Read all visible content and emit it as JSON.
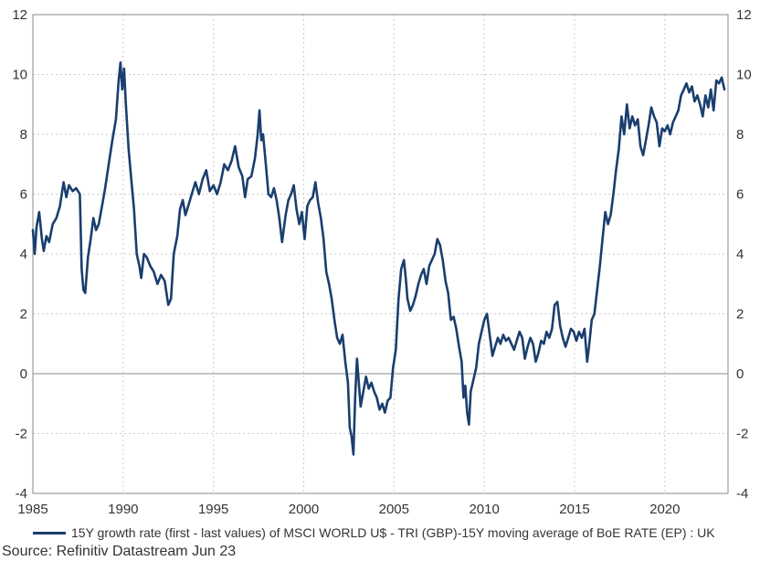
{
  "chart_data": {
    "type": "line",
    "title": "",
    "xlabel": "",
    "ylabel": "",
    "xlim": [
      1985,
      2023.5
    ],
    "ylim": [
      -4,
      12
    ],
    "x_ticks": [
      "1985",
      "1990",
      "1995",
      "2000",
      "2005",
      "2010",
      "2015",
      "2020"
    ],
    "y_ticks": [
      "-4",
      "-2",
      "0",
      "2",
      "4",
      "6",
      "8",
      "10",
      "12"
    ],
    "grid": true,
    "zero_line": true,
    "legend_position": "bottom",
    "series": [
      {
        "name": "15Y growth rate (first - last values) of MSCI WORLD U$ - TRI (GBP)-15Y moving average of BoE RATE (EP) : UK",
        "color": "#1a3e6e",
        "points": [
          [
            1985.0,
            4.8
          ],
          [
            1985.1,
            4.0
          ],
          [
            1985.2,
            4.9
          ],
          [
            1985.35,
            5.4
          ],
          [
            1985.5,
            4.5
          ],
          [
            1985.6,
            4.1
          ],
          [
            1985.75,
            4.6
          ],
          [
            1985.9,
            4.4
          ],
          [
            1986.1,
            5.0
          ],
          [
            1986.3,
            5.2
          ],
          [
            1986.5,
            5.6
          ],
          [
            1986.7,
            6.4
          ],
          [
            1986.85,
            5.9
          ],
          [
            1987.0,
            6.3
          ],
          [
            1987.2,
            6.1
          ],
          [
            1987.4,
            6.2
          ],
          [
            1987.6,
            6.0
          ],
          [
            1987.7,
            3.5
          ],
          [
            1987.8,
            2.8
          ],
          [
            1987.9,
            2.7
          ],
          [
            1988.05,
            3.9
          ],
          [
            1988.2,
            4.5
          ],
          [
            1988.35,
            5.2
          ],
          [
            1988.5,
            4.8
          ],
          [
            1988.65,
            5.0
          ],
          [
            1988.8,
            5.5
          ],
          [
            1989.0,
            6.2
          ],
          [
            1989.2,
            7.0
          ],
          [
            1989.4,
            7.8
          ],
          [
            1989.6,
            8.5
          ],
          [
            1989.75,
            9.8
          ],
          [
            1989.85,
            10.4
          ],
          [
            1989.95,
            9.5
          ],
          [
            1990.05,
            10.2
          ],
          [
            1990.15,
            9.0
          ],
          [
            1990.3,
            7.5
          ],
          [
            1990.45,
            6.5
          ],
          [
            1990.6,
            5.5
          ],
          [
            1990.75,
            4.0
          ],
          [
            1990.9,
            3.6
          ],
          [
            1991.0,
            3.2
          ],
          [
            1991.15,
            4.0
          ],
          [
            1991.3,
            3.9
          ],
          [
            1991.5,
            3.6
          ],
          [
            1991.7,
            3.4
          ],
          [
            1991.9,
            3.0
          ],
          [
            1992.1,
            3.3
          ],
          [
            1992.3,
            3.1
          ],
          [
            1992.5,
            2.3
          ],
          [
            1992.65,
            2.5
          ],
          [
            1992.8,
            4.0
          ],
          [
            1993.0,
            4.6
          ],
          [
            1993.15,
            5.5
          ],
          [
            1993.3,
            5.8
          ],
          [
            1993.45,
            5.3
          ],
          [
            1993.6,
            5.6
          ],
          [
            1993.8,
            6.0
          ],
          [
            1994.0,
            6.4
          ],
          [
            1994.2,
            6.0
          ],
          [
            1994.4,
            6.5
          ],
          [
            1994.6,
            6.8
          ],
          [
            1994.8,
            6.1
          ],
          [
            1995.0,
            6.3
          ],
          [
            1995.2,
            6.0
          ],
          [
            1995.4,
            6.4
          ],
          [
            1995.6,
            7.0
          ],
          [
            1995.8,
            6.8
          ],
          [
            1996.0,
            7.1
          ],
          [
            1996.2,
            7.6
          ],
          [
            1996.4,
            6.9
          ],
          [
            1996.6,
            6.6
          ],
          [
            1996.75,
            5.9
          ],
          [
            1996.9,
            6.5
          ],
          [
            1997.1,
            6.6
          ],
          [
            1997.3,
            7.2
          ],
          [
            1997.45,
            8.0
          ],
          [
            1997.55,
            8.8
          ],
          [
            1997.65,
            7.8
          ],
          [
            1997.75,
            8.0
          ],
          [
            1997.9,
            7.0
          ],
          [
            1998.05,
            6.0
          ],
          [
            1998.2,
            5.9
          ],
          [
            1998.35,
            6.2
          ],
          [
            1998.5,
            5.8
          ],
          [
            1998.65,
            5.2
          ],
          [
            1998.8,
            4.4
          ],
          [
            1999.0,
            5.3
          ],
          [
            1999.15,
            5.8
          ],
          [
            1999.3,
            6.0
          ],
          [
            1999.45,
            6.3
          ],
          [
            1999.6,
            5.5
          ],
          [
            1999.75,
            5.0
          ],
          [
            1999.9,
            5.4
          ],
          [
            2000.05,
            4.5
          ],
          [
            2000.2,
            5.6
          ],
          [
            2000.35,
            5.8
          ],
          [
            2000.5,
            5.9
          ],
          [
            2000.65,
            6.4
          ],
          [
            2000.8,
            5.7
          ],
          [
            2000.95,
            5.2
          ],
          [
            2001.1,
            4.5
          ],
          [
            2001.25,
            3.4
          ],
          [
            2001.4,
            3.0
          ],
          [
            2001.55,
            2.5
          ],
          [
            2001.7,
            1.8
          ],
          [
            2001.85,
            1.2
          ],
          [
            2002.0,
            1.0
          ],
          [
            2002.15,
            1.3
          ],
          [
            2002.3,
            0.4
          ],
          [
            2002.45,
            -0.3
          ],
          [
            2002.55,
            -1.8
          ],
          [
            2002.65,
            -2.1
          ],
          [
            2002.75,
            -2.7
          ],
          [
            2002.85,
            -0.8
          ],
          [
            2002.95,
            0.5
          ],
          [
            2003.05,
            -0.3
          ],
          [
            2003.15,
            -1.1
          ],
          [
            2003.3,
            -0.6
          ],
          [
            2003.45,
            -0.1
          ],
          [
            2003.6,
            -0.5
          ],
          [
            2003.75,
            -0.3
          ],
          [
            2003.9,
            -0.6
          ],
          [
            2004.05,
            -0.8
          ],
          [
            2004.2,
            -1.2
          ],
          [
            2004.35,
            -1.0
          ],
          [
            2004.5,
            -1.3
          ],
          [
            2004.65,
            -0.9
          ],
          [
            2004.8,
            -0.8
          ],
          [
            2004.95,
            0.2
          ],
          [
            2005.1,
            0.8
          ],
          [
            2005.25,
            2.5
          ],
          [
            2005.4,
            3.5
          ],
          [
            2005.55,
            3.8
          ],
          [
            2005.65,
            3.2
          ],
          [
            2005.75,
            2.5
          ],
          [
            2005.9,
            2.1
          ],
          [
            2006.05,
            2.3
          ],
          [
            2006.2,
            2.6
          ],
          [
            2006.35,
            3.0
          ],
          [
            2006.5,
            3.3
          ],
          [
            2006.65,
            3.5
          ],
          [
            2006.8,
            3.0
          ],
          [
            2006.95,
            3.6
          ],
          [
            2007.1,
            3.8
          ],
          [
            2007.25,
            4.0
          ],
          [
            2007.4,
            4.5
          ],
          [
            2007.55,
            4.3
          ],
          [
            2007.7,
            3.8
          ],
          [
            2007.85,
            3.1
          ],
          [
            2008.0,
            2.7
          ],
          [
            2008.15,
            1.8
          ],
          [
            2008.3,
            1.9
          ],
          [
            2008.45,
            1.5
          ],
          [
            2008.6,
            0.9
          ],
          [
            2008.75,
            0.4
          ],
          [
            2008.85,
            -0.8
          ],
          [
            2008.95,
            -0.4
          ],
          [
            2009.05,
            -1.3
          ],
          [
            2009.15,
            -1.7
          ],
          [
            2009.25,
            -0.6
          ],
          [
            2009.4,
            -0.2
          ],
          [
            2009.55,
            0.2
          ],
          [
            2009.7,
            1.0
          ],
          [
            2009.85,
            1.4
          ],
          [
            2010.0,
            1.8
          ],
          [
            2010.15,
            2.0
          ],
          [
            2010.3,
            1.3
          ],
          [
            2010.45,
            0.6
          ],
          [
            2010.6,
            0.9
          ],
          [
            2010.75,
            1.2
          ],
          [
            2010.9,
            1.0
          ],
          [
            2011.05,
            1.3
          ],
          [
            2011.2,
            1.1
          ],
          [
            2011.35,
            1.2
          ],
          [
            2011.5,
            1.0
          ],
          [
            2011.65,
            0.8
          ],
          [
            2011.8,
            1.1
          ],
          [
            2011.95,
            1.4
          ],
          [
            2012.1,
            1.2
          ],
          [
            2012.25,
            0.5
          ],
          [
            2012.4,
            0.9
          ],
          [
            2012.55,
            1.2
          ],
          [
            2012.7,
            1.0
          ],
          [
            2012.85,
            0.4
          ],
          [
            2013.0,
            0.7
          ],
          [
            2013.15,
            1.1
          ],
          [
            2013.3,
            1.0
          ],
          [
            2013.45,
            1.4
          ],
          [
            2013.6,
            1.2
          ],
          [
            2013.75,
            1.5
          ],
          [
            2013.9,
            2.3
          ],
          [
            2014.05,
            2.4
          ],
          [
            2014.2,
            1.6
          ],
          [
            2014.35,
            1.2
          ],
          [
            2014.5,
            0.9
          ],
          [
            2014.65,
            1.2
          ],
          [
            2014.8,
            1.5
          ],
          [
            2014.95,
            1.4
          ],
          [
            2015.1,
            1.1
          ],
          [
            2015.25,
            1.4
          ],
          [
            2015.4,
            1.2
          ],
          [
            2015.55,
            1.5
          ],
          [
            2015.7,
            0.4
          ],
          [
            2015.8,
            0.9
          ],
          [
            2015.95,
            1.8
          ],
          [
            2016.1,
            2.0
          ],
          [
            2016.25,
            2.8
          ],
          [
            2016.4,
            3.6
          ],
          [
            2016.55,
            4.5
          ],
          [
            2016.7,
            5.4
          ],
          [
            2016.85,
            5.0
          ],
          [
            2017.0,
            5.3
          ],
          [
            2017.15,
            6.0
          ],
          [
            2017.3,
            6.8
          ],
          [
            2017.45,
            7.5
          ],
          [
            2017.6,
            8.6
          ],
          [
            2017.75,
            8.0
          ],
          [
            2017.9,
            9.0
          ],
          [
            2018.05,
            8.2
          ],
          [
            2018.2,
            8.6
          ],
          [
            2018.35,
            8.3
          ],
          [
            2018.5,
            8.5
          ],
          [
            2018.65,
            7.6
          ],
          [
            2018.8,
            7.3
          ],
          [
            2018.95,
            7.8
          ],
          [
            2019.1,
            8.3
          ],
          [
            2019.25,
            8.9
          ],
          [
            2019.4,
            8.6
          ],
          [
            2019.55,
            8.4
          ],
          [
            2019.7,
            7.6
          ],
          [
            2019.85,
            8.2
          ],
          [
            2020.0,
            8.1
          ],
          [
            2020.15,
            8.3
          ],
          [
            2020.3,
            8.0
          ],
          [
            2020.45,
            8.4
          ],
          [
            2020.6,
            8.6
          ],
          [
            2020.75,
            8.8
          ],
          [
            2020.9,
            9.3
          ],
          [
            2021.05,
            9.5
          ],
          [
            2021.2,
            9.7
          ],
          [
            2021.35,
            9.4
          ],
          [
            2021.5,
            9.6
          ],
          [
            2021.65,
            9.1
          ],
          [
            2021.8,
            9.3
          ],
          [
            2021.95,
            9.0
          ],
          [
            2022.1,
            8.6
          ],
          [
            2022.25,
            9.3
          ],
          [
            2022.4,
            8.9
          ],
          [
            2022.55,
            9.5
          ],
          [
            2022.7,
            8.8
          ],
          [
            2022.85,
            9.8
          ],
          [
            2023.0,
            9.7
          ],
          [
            2023.15,
            9.9
          ],
          [
            2023.3,
            9.5
          ]
        ]
      }
    ]
  },
  "legend": {
    "label": "15Y growth rate (first - last values) of MSCI WORLD U$ - TRI (GBP)-15Y moving average of BoE RATE (EP) : UK"
  },
  "source": "Source: Refinitiv Datastream Jun 23",
  "colors": {
    "series": "#1a3e6e",
    "grid": "#cccccc",
    "axis": "#8a8a8a"
  }
}
